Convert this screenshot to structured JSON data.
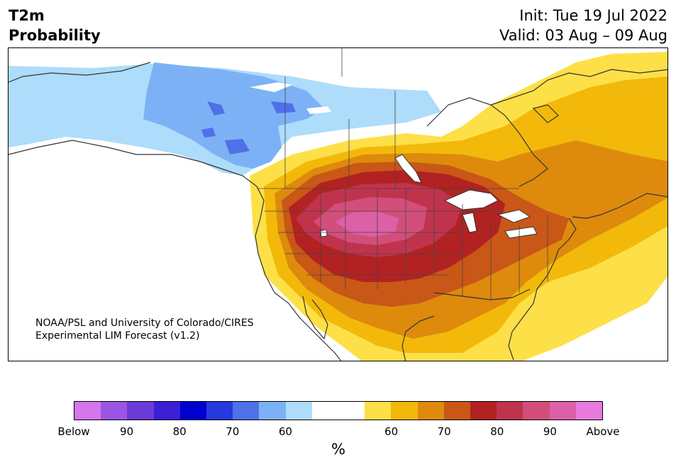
{
  "header": {
    "title_line1": "T2m",
    "title_line2": "Probability",
    "init": "Init: Tue 19 Jul 2022",
    "valid": "Valid: 03 Aug – 09 Aug"
  },
  "map": {
    "credit_line1": "NOAA/PSL and University of Colorado/CIRES",
    "credit_line2": "Experimental LIM Forecast (v1.2)"
  },
  "colorbar": {
    "unit_label": "%",
    "colors": [
      "#d576ed",
      "#9b55e4",
      "#6c3ad9",
      "#3a1fd5",
      "#0000cf",
      "#2738dc",
      "#5070e8",
      "#7cb2f5",
      "#aedcfb",
      "#ffffff",
      "#ffffff",
      "#fde047",
      "#f2b90b",
      "#de8a0d",
      "#c95717",
      "#b22222",
      "#c0334d",
      "#d24f7b",
      "#dc60a7",
      "#e87ade"
    ],
    "tick_labels": [
      "Below",
      "90",
      "80",
      "70",
      "60",
      "60",
      "70",
      "80",
      "90",
      "Above"
    ]
  },
  "colors": {
    "below_light": "#aedcfb",
    "below_mid": "#7cb2f5",
    "below_strong": "#5070e8",
    "above_60": "#fde047",
    "above_65": "#f2b90b",
    "above_70": "#de8a0d",
    "above_75": "#c95717",
    "above_80": "#b22222",
    "above_85": "#c0334d",
    "above_90": "#d24f7b",
    "above_95": "#dc60a7"
  }
}
